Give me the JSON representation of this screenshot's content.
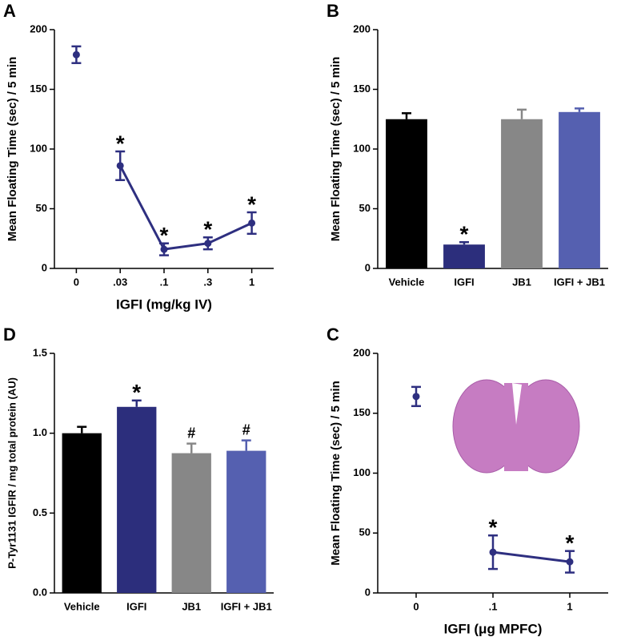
{
  "chart_data": [
    {
      "type": "line",
      "label": "A",
      "ylabel": "Mean Floating Time (sec) / 5 min",
      "xlabel": "IGFI (mg/kg IV)",
      "categories": [
        "0",
        ".03",
        ".1",
        ".3",
        "1"
      ],
      "series": [
        {
          "color": "#2e2f80",
          "values": [
            179,
            null,
            null,
            null,
            null
          ],
          "errors": [
            7,
            null,
            null,
            null,
            null
          ]
        },
        {
          "color": "#2e2f80",
          "values": [
            null,
            86,
            16,
            21,
            38
          ],
          "errors": [
            null,
            12,
            5,
            5,
            9
          ]
        }
      ],
      "annotations": [
        null,
        "*",
        "*",
        "*",
        "*"
      ],
      "ylim": [
        0,
        200
      ],
      "yticks": [
        0,
        50,
        100,
        150,
        200
      ]
    },
    {
      "type": "bar",
      "label": "B",
      "ylabel": "Mean Floating Time (sec) / 5 min",
      "categories": [
        "Vehicle",
        "IGFI",
        "JB1",
        "IGFI + JB1"
      ],
      "values": [
        125,
        20,
        125,
        131
      ],
      "errors": [
        5,
        2,
        8,
        3
      ],
      "colors": [
        "#000000",
        "#2c2e7c",
        "#878787",
        "#5560b0"
      ],
      "annotations": [
        null,
        "*",
        null,
        null
      ],
      "ylim": [
        0,
        200
      ],
      "yticks": [
        0,
        50,
        100,
        150,
        200
      ]
    },
    {
      "type": "line",
      "label": "C",
      "ylabel": "Mean Floating Time (sec) / 5 min",
      "xlabel": "IGFI (μg MPFC)",
      "categories": [
        "0",
        ".1",
        "1"
      ],
      "series": [
        {
          "color": "#2e2f80",
          "values": [
            164,
            null,
            null
          ],
          "errors": [
            8,
            null,
            null
          ]
        },
        {
          "color": "#2e2f80",
          "values": [
            null,
            34,
            26
          ],
          "errors": [
            null,
            14,
            9
          ]
        }
      ],
      "annotations": [
        null,
        "*",
        "*"
      ],
      "ylim": [
        0,
        200
      ],
      "yticks": [
        0,
        50,
        100,
        150,
        200
      ]
    },
    {
      "type": "bar",
      "label": "D",
      "ylabel": "P-Tyr1131 IGFIR / mg total protein (AU)",
      "categories": [
        "Vehicle",
        "IGFI",
        "JB1",
        "IGFI + JB1"
      ],
      "values": [
        1.0,
        1.165,
        0.875,
        0.89
      ],
      "errors": [
        0.04,
        0.04,
        0.06,
        0.065
      ],
      "colors": [
        "#000000",
        "#2c2e7c",
        "#878787",
        "#5560b0"
      ],
      "annotations": [
        null,
        "*",
        "#",
        "#"
      ],
      "ylim": [
        0,
        1.5
      ],
      "yticks": [
        {
          "value": 0,
          "label": "0.0"
        },
        {
          "value": 0.5,
          "label": "0.5"
        },
        {
          "value": 1,
          "label": "1.0"
        },
        {
          "value": 1.5,
          "label": "1.5"
        }
      ]
    }
  ]
}
